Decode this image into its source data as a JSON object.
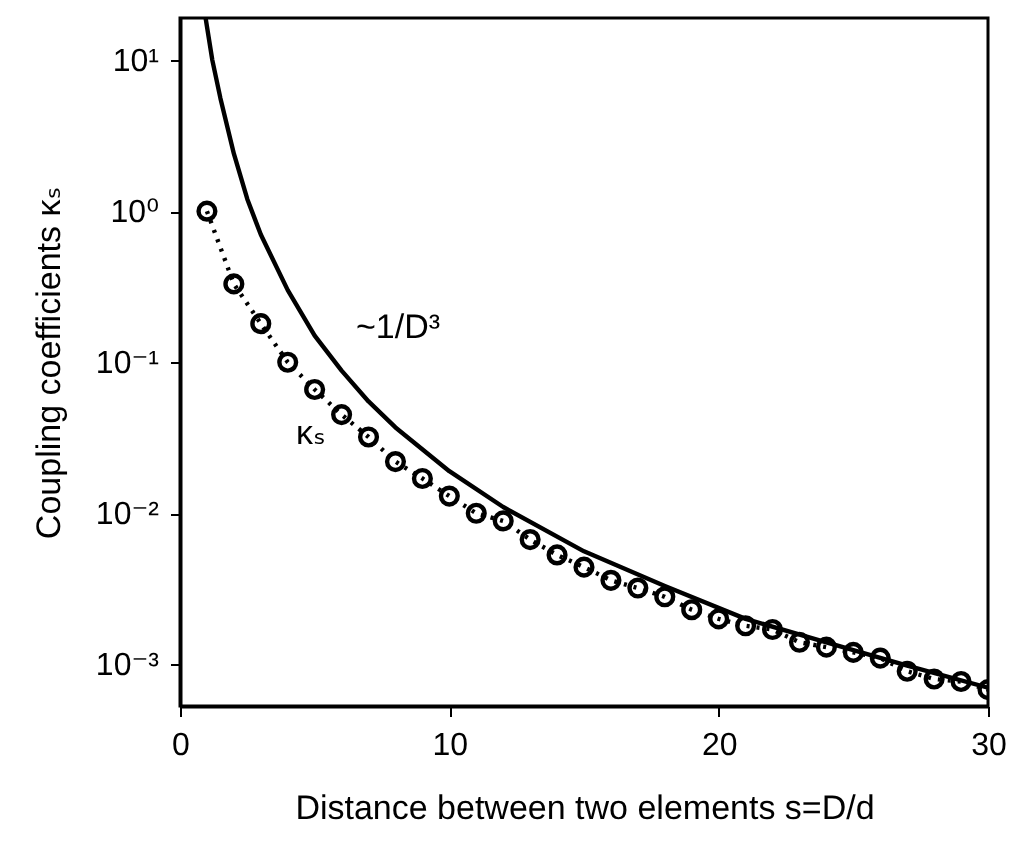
{
  "chart_data": {
    "type": "line",
    "xlabel": "Distance between two elements  s=D/d",
    "ylabel": "Coupling coefficients κₛ",
    "log": "y",
    "grid": false,
    "xlim": [
      0,
      30
    ],
    "xticks": [
      0,
      10,
      20,
      30
    ],
    "ylim": [
      0.00053,
      19
    ],
    "yticks": [
      {
        "value": 0.001,
        "label": "10⁻³"
      },
      {
        "value": 0.01,
        "label": "10⁻²"
      },
      {
        "value": 0.1,
        "label": "10⁻¹"
      },
      {
        "value": 1,
        "label": "10⁰"
      },
      {
        "value": 10,
        "label": "10¹"
      }
    ],
    "series": [
      {
        "color": "#000000",
        "marker": "circle",
        "line_style": "dotted",
        "x": [
          1,
          2,
          3,
          4,
          5,
          6,
          7,
          8,
          9,
          10,
          11,
          12,
          13,
          14,
          15,
          16,
          17,
          18,
          19,
          20,
          21,
          22,
          23,
          24,
          25,
          26,
          27,
          28,
          29,
          30
        ],
        "values": [
          1,
          0.33,
          0.18,
          0.1,
          0.066,
          0.045,
          0.032,
          0.022,
          0.017,
          0.013,
          0.01,
          0.0089,
          0.0067,
          0.0053,
          0.0044,
          0.0036,
          0.0032,
          0.0028,
          0.0023,
          0.002,
          0.0018,
          0.0017,
          0.0014,
          0.0013,
          0.0012,
          0.0011,
          0.0009,
          0.0008,
          0.00077,
          0.00068
        ]
      },
      {
        "color": "#000000",
        "marker": "none",
        "line_style": "solid",
        "x": [
          0.95,
          1.2,
          1.5,
          2,
          2.5,
          3,
          4,
          5,
          6,
          7,
          8,
          10,
          12,
          15,
          18,
          21,
          24,
          27,
          30
        ],
        "values": [
          19,
          10,
          5.6,
          2.4,
          1.2,
          0.7,
          0.3,
          0.15,
          0.088,
          0.055,
          0.037,
          0.019,
          0.011,
          0.0056,
          0.0033,
          0.002,
          0.0014,
          0.00098,
          0.0007
        ]
      }
    ],
    "annotations": [
      "~1/D³",
      "κₛ"
    ]
  }
}
